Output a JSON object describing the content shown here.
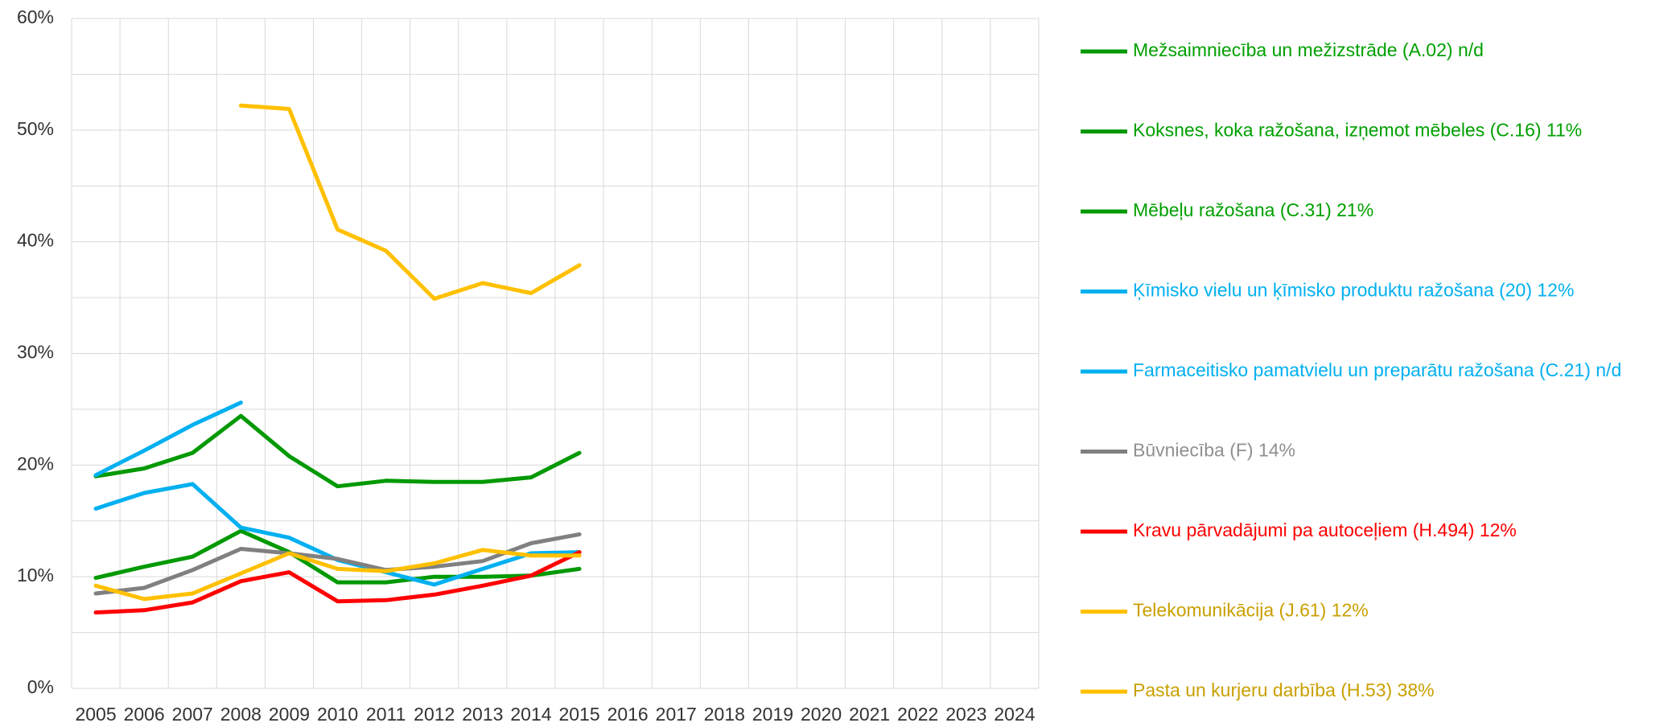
{
  "chart_data": {
    "type": "line",
    "categories": [
      "2005",
      "2006",
      "2007",
      "2008",
      "2009",
      "2010",
      "2011",
      "2012",
      "2013",
      "2014",
      "2015",
      "2016",
      "2017",
      "2018",
      "2019",
      "2020",
      "2021",
      "2022",
      "2023",
      "2024"
    ],
    "ylim": [
      0,
      60
    ],
    "yticks": [
      {
        "value": 0,
        "label": "0%"
      },
      {
        "value": 10,
        "label": "10%"
      },
      {
        "value": 20,
        "label": "20%"
      },
      {
        "value": 30,
        "label": "30%"
      },
      {
        "value": 40,
        "label": "40%"
      },
      {
        "value": 50,
        "label": "50%"
      },
      {
        "value": 60,
        "label": "60%"
      }
    ],
    "minor_yticks": [
      5,
      15,
      25,
      35,
      45,
      55
    ],
    "grid": true,
    "legend": "right",
    "series": [
      {
        "name": "Mežsaimniecība un mežizstrāde (A.02) n/d",
        "color": "#009900",
        "text_color": "#00a000",
        "values": [
          null,
          null,
          null,
          null,
          null,
          null,
          null,
          null,
          null,
          null,
          null,
          null,
          null,
          null,
          null,
          null,
          null,
          null,
          null,
          null
        ]
      },
      {
        "name": "Koksnes, koka ražošana, izņemot mēbeles (C.16) 11%",
        "color": "#009900",
        "text_color": "#00a000",
        "values": [
          9.9,
          10.9,
          11.8,
          14.1,
          12.2,
          9.5,
          9.5,
          10.0,
          10.0,
          10.1,
          10.7,
          null,
          null,
          null,
          null,
          null,
          null,
          null,
          null,
          null
        ]
      },
      {
        "name": "Mēbeļu ražošana (C.31) 21%",
        "color": "#009900",
        "text_color": "#00a000",
        "values": [
          19.0,
          19.7,
          21.1,
          24.4,
          20.8,
          18.1,
          18.6,
          18.5,
          18.5,
          18.9,
          21.1,
          null,
          null,
          null,
          null,
          null,
          null,
          null,
          null,
          null
        ]
      },
      {
        "name": "Ķīmisko vielu un ķīmisko produktu ražošana (20) 12%",
        "color": "#00b0f0",
        "text_color": "#00b0f0",
        "values": [
          16.1,
          17.5,
          18.3,
          14.4,
          13.5,
          11.5,
          10.4,
          9.3,
          10.7,
          12.1,
          12.2,
          null,
          null,
          null,
          null,
          null,
          null,
          null,
          null,
          null
        ]
      },
      {
        "name": "Farmaceitisko pamatvielu un preparātu ražošana (C.21) n/d",
        "color": "#00b0f0",
        "text_color": "#00b0f0",
        "values": [
          19.1,
          21.3,
          23.6,
          25.6,
          null,
          null,
          null,
          null,
          null,
          null,
          null,
          null,
          null,
          null,
          null,
          null,
          null,
          null,
          null,
          null
        ]
      },
      {
        "name": "Būvniecība (F) 14%",
        "color": "#808080",
        "text_color": "#909090",
        "values": [
          8.5,
          9.0,
          10.6,
          12.5,
          12.1,
          11.6,
          10.6,
          10.9,
          11.4,
          13.0,
          13.8,
          null,
          null,
          null,
          null,
          null,
          null,
          null,
          null,
          null
        ]
      },
      {
        "name": "Kravu pārvadājumi pa autoceļiem (H.494) 12%",
        "color": "#ff0000",
        "text_color": "#ff0000",
        "values": [
          6.8,
          7.0,
          7.7,
          9.6,
          10.4,
          7.8,
          7.9,
          8.4,
          9.2,
          10.1,
          12.2,
          null,
          null,
          null,
          null,
          null,
          null,
          null,
          null,
          null
        ]
      },
      {
        "name": "Telekomunikācija (J.61) 12%",
        "color": "#ffc000",
        "text_color": "#c9a000",
        "values": [
          9.2,
          8.0,
          8.5,
          10.3,
          12.1,
          10.7,
          10.5,
          11.2,
          12.4,
          11.9,
          11.9,
          null,
          null,
          null,
          null,
          null,
          null,
          null,
          null,
          null
        ]
      },
      {
        "name": "Pasta un kurjeru darbība (H.53) 38%",
        "color": "#ffc000",
        "text_color": "#c9a000",
        "values": [
          null,
          null,
          null,
          52.2,
          51.9,
          41.1,
          39.2,
          34.9,
          36.3,
          35.4,
          37.9,
          null,
          null,
          null,
          null,
          null,
          null,
          null,
          null,
          null
        ]
      }
    ]
  }
}
